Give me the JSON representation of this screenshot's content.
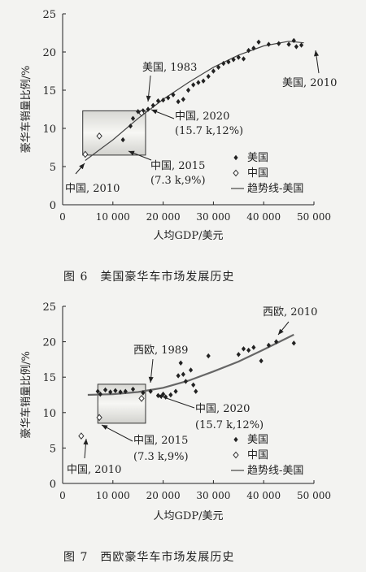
{
  "figures": [
    {
      "caption": "图 6　美国豪华车市场发展历史"
    },
    {
      "caption": "图 7　西欧豪华车市场发展历史"
    }
  ],
  "chart_data": [
    {
      "type": "scatter",
      "title": "",
      "xlabel": "人均GDP/美元",
      "ylabel": "豪华车销量比例/%",
      "xlim": [
        0,
        50000
      ],
      "ylim": [
        0,
        25
      ],
      "xticks": [
        "0",
        "10 000",
        "20 000",
        "30 000",
        "40 000",
        "50 000"
      ],
      "yticks": [
        "0",
        "5",
        "10",
        "15",
        "20",
        "25"
      ],
      "grid": false,
      "legend_position": "lower-right",
      "series": [
        {
          "name": "美国",
          "marker": "filled-diamond",
          "color": "#222222",
          "points": [
            [
              12000,
              8.5
            ],
            [
              13500,
              10.3
            ],
            [
              14000,
              11.3
            ],
            [
              15000,
              12.2
            ],
            [
              16000,
              12.3
            ],
            [
              17000,
              12.5
            ],
            [
              18000,
              13.0
            ],
            [
              19000,
              13.6
            ],
            [
              20000,
              13.7
            ],
            [
              21000,
              14.0
            ],
            [
              22000,
              14.4
            ],
            [
              23000,
              13.5
            ],
            [
              24000,
              13.8
            ],
            [
              25000,
              15.0
            ],
            [
              26000,
              15.7
            ],
            [
              27000,
              16.0
            ],
            [
              28000,
              16.2
            ],
            [
              29000,
              16.8
            ],
            [
              30000,
              17.5
            ],
            [
              31000,
              18.0
            ],
            [
              32000,
              18.5
            ],
            [
              33000,
              18.7
            ],
            [
              34000,
              19.0
            ],
            [
              35000,
              19.3
            ],
            [
              36000,
              19.1
            ],
            [
              37000,
              20.2
            ],
            [
              38000,
              20.5
            ],
            [
              39000,
              21.3
            ],
            [
              41000,
              21.0
            ],
            [
              43000,
              21.1
            ],
            [
              45000,
              21.0
            ],
            [
              46000,
              21.5
            ],
            [
              46500,
              20.7
            ],
            [
              47500,
              20.9
            ]
          ]
        },
        {
          "name": "中国",
          "marker": "open-diamond",
          "color": "#222222",
          "points": [
            [
              4500,
              6.6
            ],
            [
              7300,
              9.0
            ],
            [
              15700,
              12.0
            ]
          ]
        },
        {
          "name": "趋势线-美国",
          "marker": "line",
          "color": "#444444",
          "points": [
            [
              4500,
              5.8
            ],
            [
              10000,
              8.5
            ],
            [
              15000,
              11.3
            ],
            [
              20000,
              13.8
            ],
            [
              25000,
              16.0
            ],
            [
              30000,
              18.0
            ],
            [
              35000,
              19.6
            ],
            [
              40000,
              20.8
            ],
            [
              45000,
              21.4
            ],
            [
              48000,
              21.2
            ]
          ]
        }
      ],
      "annotations": [
        {
          "text": "美国, 1983"
        },
        {
          "text": "美国, 2010"
        },
        {
          "text": "中国, 2020",
          "text2": "(15.7 k,12%)"
        },
        {
          "text": "中国, 2015",
          "text2": "(7.3 k,9%)"
        },
        {
          "text": "中国, 2010"
        }
      ]
    },
    {
      "type": "scatter",
      "title": "",
      "xlabel": "人均GDP/美元",
      "ylabel": "豪华车销量比例/%",
      "xlim": [
        0,
        50000
      ],
      "ylim": [
        0,
        25
      ],
      "xticks": [
        "0",
        "10 000",
        "20 000",
        "30 000",
        "40 000",
        "50 000"
      ],
      "yticks": [
        "0",
        "5",
        "10",
        "15",
        "20",
        "25"
      ],
      "grid": false,
      "legend_position": "lower-right",
      "series": [
        {
          "name": "美国",
          "marker": "filled-diamond",
          "color": "#222222",
          "points": [
            [
              7000,
              13.0
            ],
            [
              7500,
              12.6
            ],
            [
              8500,
              13.2
            ],
            [
              9500,
              12.9
            ],
            [
              10500,
              13.1
            ],
            [
              11500,
              12.9
            ],
            [
              12500,
              13.0
            ],
            [
              14000,
              13.3
            ],
            [
              16000,
              12.8
            ],
            [
              17500,
              13.0
            ],
            [
              19000,
              12.4
            ],
            [
              20000,
              12.6
            ],
            [
              20500,
              12.2
            ],
            [
              21500,
              12.5
            ],
            [
              22500,
              13.0
            ],
            [
              23000,
              15.2
            ],
            [
              23500,
              17.0
            ],
            [
              24000,
              15.4
            ],
            [
              24500,
              14.4
            ],
            [
              25500,
              16.0
            ],
            [
              26000,
              13.9
            ],
            [
              26500,
              13.0
            ],
            [
              29000,
              18.0
            ],
            [
              35000,
              18.2
            ],
            [
              36000,
              19.0
            ],
            [
              37000,
              18.8
            ],
            [
              38000,
              19.2
            ],
            [
              39500,
              17.3
            ],
            [
              41000,
              19.5
            ],
            [
              42500,
              20.0
            ],
            [
              46000,
              19.8
            ]
          ]
        },
        {
          "name": "中国",
          "marker": "open-diamond",
          "color": "#222222",
          "points": [
            [
              3700,
              6.7
            ],
            [
              7300,
              9.3
            ],
            [
              15700,
              12.0
            ]
          ]
        },
        {
          "name": "趋势线-美国",
          "marker": "line",
          "color": "#666666",
          "points": [
            [
              5000,
              12.5
            ],
            [
              10000,
              12.6
            ],
            [
              15000,
              12.9
            ],
            [
              20000,
              13.5
            ],
            [
              25000,
              14.5
            ],
            [
              30000,
              15.8
            ],
            [
              35000,
              17.2
            ],
            [
              40000,
              18.9
            ],
            [
              46000,
              21.0
            ]
          ]
        }
      ],
      "annotations": [
        {
          "text": "西欧, 2010"
        },
        {
          "text": "西欧, 1989"
        },
        {
          "text": "中国, 2020",
          "text2": "(15.7 k,12%)"
        },
        {
          "text": "中国, 2015",
          "text2": "(7.3 k,9%)"
        },
        {
          "text": "中国, 2010"
        }
      ]
    }
  ]
}
